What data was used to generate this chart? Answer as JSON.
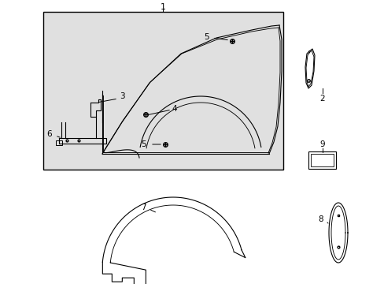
{
  "bg_color": "#ffffff",
  "box_bg": "#e0e0e0",
  "line_color": "#000000",
  "figsize": [
    4.89,
    3.6
  ],
  "dpi": 100
}
